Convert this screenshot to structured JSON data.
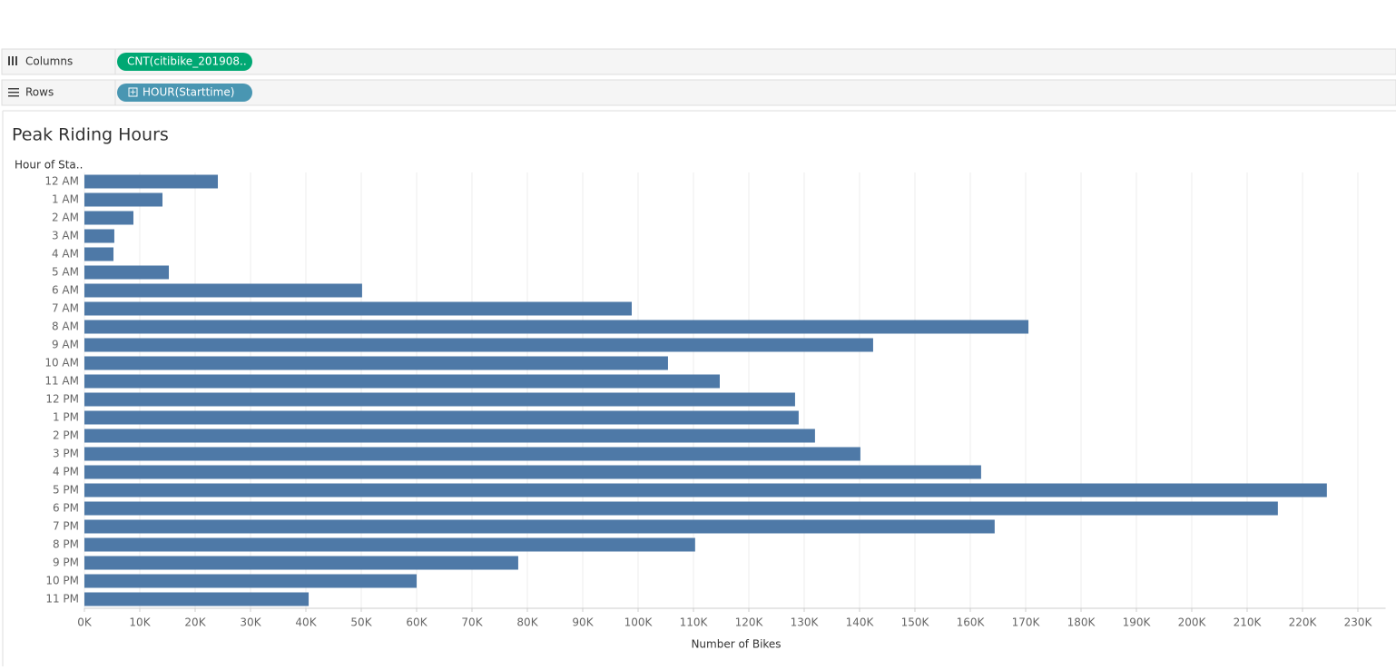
{
  "shelves": {
    "columns": {
      "label": "Columns",
      "pill": "CNT(citibike_201908.."
    },
    "rows": {
      "label": "Rows",
      "pill": "HOUR(Starttime)"
    }
  },
  "chart_data": {
    "type": "bar",
    "orientation": "horizontal",
    "title": "Peak Riding Hours",
    "y_label": "Hour of Sta..",
    "x_label": "Number of Bikes",
    "color": "#4e79a7",
    "grid": true,
    "categories": [
      "12 AM",
      "1 AM",
      "2 AM",
      "3 AM",
      "4 AM",
      "5 AM",
      "6 AM",
      "7 AM",
      "8 AM",
      "9 AM",
      "10 AM",
      "11 AM",
      "12 PM",
      "1 PM",
      "2 PM",
      "3 PM",
      "4 PM",
      "5 PM",
      "6 PM",
      "7 PM",
      "8 PM",
      "9 PM",
      "10 PM",
      "11 PM"
    ],
    "values": [
      24100,
      14100,
      8850,
      5400,
      5250,
      15250,
      50150,
      98850,
      170500,
      142450,
      105400,
      114750,
      128350,
      129000,
      131950,
      140150,
      161950,
      224400,
      215550,
      164400,
      110300,
      78350,
      60000,
      40500
    ],
    "xlim": [
      0,
      235000
    ],
    "xticks": [
      {
        "value": 0,
        "label": "0K"
      },
      {
        "value": 10000,
        "label": "10K"
      },
      {
        "value": 20000,
        "label": "20K"
      },
      {
        "value": 30000,
        "label": "30K"
      },
      {
        "value": 40000,
        "label": "40K"
      },
      {
        "value": 50000,
        "label": "50K"
      },
      {
        "value": 60000,
        "label": "60K"
      },
      {
        "value": 70000,
        "label": "70K"
      },
      {
        "value": 80000,
        "label": "80K"
      },
      {
        "value": 90000,
        "label": "90K"
      },
      {
        "value": 100000,
        "label": "100K"
      },
      {
        "value": 110000,
        "label": "110K"
      },
      {
        "value": 120000,
        "label": "120K"
      },
      {
        "value": 130000,
        "label": "130K"
      },
      {
        "value": 140000,
        "label": "140K"
      },
      {
        "value": 150000,
        "label": "150K"
      },
      {
        "value": 160000,
        "label": "160K"
      },
      {
        "value": 170000,
        "label": "170K"
      },
      {
        "value": 180000,
        "label": "180K"
      },
      {
        "value": 190000,
        "label": "190K"
      },
      {
        "value": 200000,
        "label": "200K"
      },
      {
        "value": 210000,
        "label": "210K"
      },
      {
        "value": 220000,
        "label": "220K"
      },
      {
        "value": 230000,
        "label": "230K"
      }
    ]
  }
}
